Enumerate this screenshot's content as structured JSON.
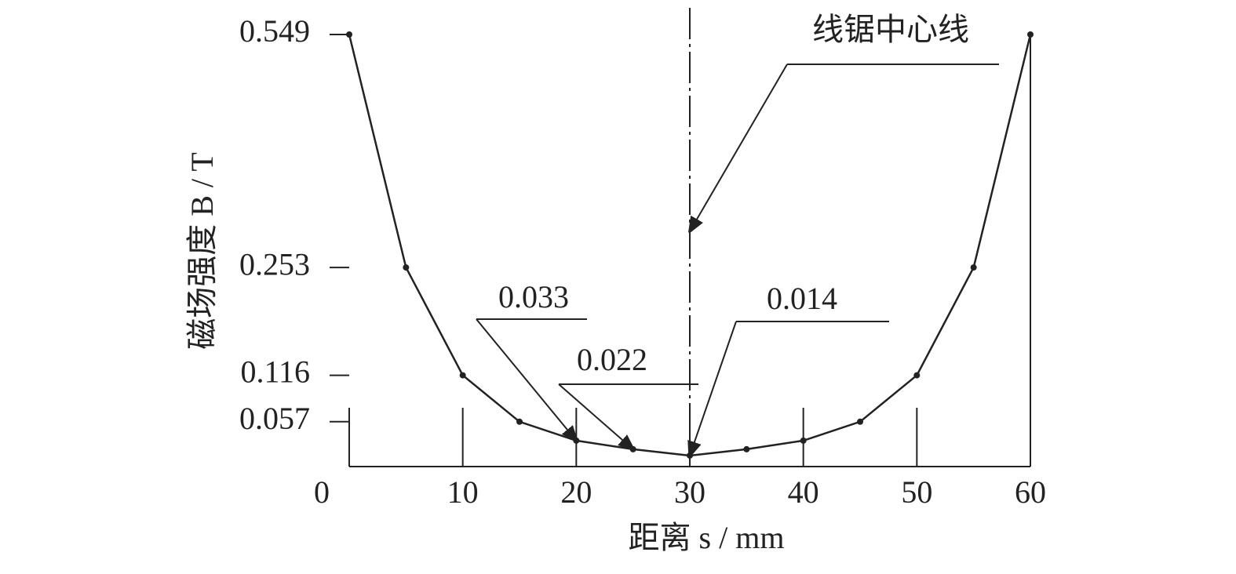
{
  "chart_data": {
    "type": "line",
    "x_label": "距离 s / mm",
    "y_label": "磁场强度 B / T",
    "x": [
      0,
      5,
      10,
      15,
      20,
      25,
      30,
      35,
      40,
      45,
      50,
      55,
      60
    ],
    "series": [
      {
        "color": "#222222",
        "values": [
          0.549,
          0.253,
          0.116,
          0.057,
          0.033,
          0.022,
          0.014,
          0.022,
          0.033,
          0.057,
          0.116,
          0.253,
          0.549
        ]
      }
    ],
    "xlim": [
      0,
      60
    ],
    "xticks": [
      0,
      10,
      20,
      30,
      40,
      50,
      60
    ],
    "ylim": [
      0,
      0.549
    ],
    "yticks": [
      0.057,
      0.116,
      0.253,
      0.549
    ],
    "annotations": [
      {
        "text": "0.033"
      },
      {
        "text": "0.022"
      },
      {
        "text": "0.014"
      },
      {
        "text": "线锯中心线"
      }
    ]
  }
}
